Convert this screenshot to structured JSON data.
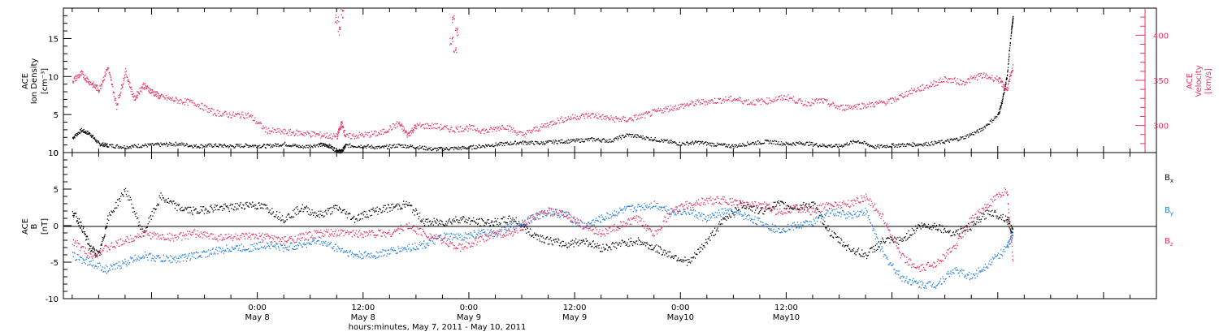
{
  "chart_data": [
    {
      "type": "scatter",
      "panel": "top",
      "left_axis_label": [
        "ACE",
        "Ion Density",
        "[cm⁻³]"
      ],
      "right_axis_label": [
        "ACE",
        "Velocity",
        "[km/s]"
      ],
      "ylim_left": [
        0,
        19
      ],
      "yticks_left": [
        "0",
        "5",
        "10",
        "15"
      ],
      "ylim_right": [
        270,
        430
      ],
      "yticks_right": [
        "300",
        "350",
        "400"
      ],
      "colors": {
        "density": "#000000",
        "velocity": "#e8325f"
      },
      "series": [
        {
          "axis": "left",
          "x": [
            -21,
            -20,
            -19,
            -18,
            -17,
            -15,
            -13,
            -11,
            -9,
            -7,
            -5,
            -3,
            -1,
            1,
            3,
            5,
            7,
            8,
            9,
            9.5,
            10,
            12,
            14,
            16,
            18,
            20,
            22,
            24,
            26,
            28,
            30,
            32,
            34,
            36,
            38,
            40,
            42,
            44,
            46,
            48,
            50,
            52,
            54,
            56,
            58,
            60,
            62,
            64,
            66,
            68,
            70,
            72,
            74,
            76,
            78,
            80,
            82,
            84,
            84.5,
            85,
            85.5,
            85.7
          ],
          "values": [
            2,
            3,
            2.5,
            1.2,
            1,
            0.8,
            1,
            1.1,
            1.2,
            0.9,
            1,
            0.9,
            1,
            0.9,
            1.2,
            0.8,
            1.1,
            1,
            0.3,
            0.2,
            1,
            0.9,
            0.7,
            1,
            0.8,
            0.5,
            0.6,
            0.7,
            1,
            1.2,
            1.4,
            1.3,
            1.5,
            1.6,
            1.8,
            1.6,
            2.4,
            2,
            1.6,
            1.2,
            1.4,
            1.1,
            0.9,
            1.3,
            1.5,
            1.2,
            1.3,
            1,
            0.9,
            1.6,
            0.8,
            1,
            1.1,
            1.2,
            1.5,
            2,
            3,
            5,
            7,
            10,
            16,
            18
          ]
        },
        {
          "axis": "right",
          "x": [
            -21,
            -20,
            -19,
            -18,
            -17,
            -16,
            -15,
            -14,
            -13,
            -12,
            -11,
            -9,
            -7,
            -5,
            -3,
            -1,
            1,
            3,
            5,
            7,
            9,
            9.5,
            10,
            12,
            14,
            16,
            17,
            18,
            20,
            22,
            24,
            26,
            28,
            30,
            32,
            34,
            36,
            38,
            40,
            42,
            44,
            46,
            48,
            50,
            52,
            54,
            56,
            58,
            60,
            62,
            64,
            66,
            68,
            70,
            72,
            74,
            76,
            78,
            80,
            82,
            84,
            85,
            85.7
          ],
          "values": [
            350,
            358,
            348,
            340,
            365,
            322,
            360,
            330,
            345,
            338,
            332,
            328,
            325,
            315,
            312,
            312,
            295,
            293,
            292,
            290,
            288,
            303,
            288,
            290,
            292,
            303,
            290,
            300,
            300,
            296,
            298,
            294,
            300,
            290,
            298,
            306,
            310,
            312,
            308,
            307,
            312,
            318,
            322,
            326,
            328,
            330,
            326,
            328,
            332,
            325,
            328,
            320,
            322,
            324,
            328,
            338,
            344,
            352,
            348,
            356,
            352,
            340,
            366
          ]
        },
        {
          "axis": "right",
          "x": [
            9,
            9.3,
            9.6,
            22,
            22.2,
            22.4,
            22.6
          ],
          "values": [
            418,
            405,
            424,
            395,
            418,
            385,
            405
          ]
        }
      ]
    },
    {
      "type": "scatter",
      "panel": "bottom",
      "left_axis_label": [
        "ACE",
        "B",
        "[nT]"
      ],
      "ylim": [
        -10,
        10
      ],
      "yticks": [
        "-10",
        "-5",
        "0",
        "5",
        "10"
      ],
      "zero_line": true,
      "xlim": [
        -22,
        102
      ],
      "xticks": [
        {
          "hour": 0,
          "time": "0:00",
          "date": "May 8"
        },
        {
          "hour": 12,
          "time": "12:00",
          "date": "May 8"
        },
        {
          "hour": 24,
          "time": "0:00",
          "date": "May 9"
        },
        {
          "hour": 36,
          "time": "12:00",
          "date": "May 9"
        },
        {
          "hour": 48,
          "time": "0:00",
          "date": "May10"
        },
        {
          "hour": 60,
          "time": "12:00",
          "date": "May10"
        }
      ],
      "xlabel": "hours:minutes, May  7, 2011 - May 10, 2011",
      "series": [
        {
          "name": "Bx",
          "color": "#000000",
          "x": [
            -21,
            -20,
            -19,
            -18,
            -17,
            -15,
            -13,
            -11,
            -9,
            -7,
            -5,
            -3,
            -1,
            1,
            3,
            5,
            7,
            9,
            11,
            13,
            15,
            17,
            19,
            21,
            23,
            25,
            27,
            29,
            31,
            33,
            35,
            37,
            39,
            41,
            43,
            45,
            47,
            49,
            51,
            53,
            55,
            57,
            59,
            61,
            63,
            65,
            67,
            69,
            71,
            73,
            75,
            77,
            79,
            81,
            83,
            85,
            85.7
          ],
          "values": [
            2,
            0,
            -3,
            -4,
            1,
            5,
            -1,
            4,
            2.5,
            2,
            2.5,
            2.5,
            3,
            2.5,
            1,
            2.5,
            1.5,
            2.5,
            1,
            2,
            2.5,
            3,
            0.5,
            0.5,
            1,
            0.5,
            0.5,
            1,
            -1,
            -2,
            -2.5,
            -2,
            -3,
            -2.5,
            -2,
            -3,
            -4,
            -5,
            -2,
            1,
            3,
            2,
            3,
            2.5,
            3,
            -1,
            -3,
            -4,
            -2,
            -2,
            0,
            0,
            -1,
            0,
            2,
            1,
            -1
          ]
        },
        {
          "name": "By",
          "color": "#1e7ee0",
          "x": [
            -21,
            -19,
            -17,
            -15,
            -13,
            -11,
            -9,
            -7,
            -5,
            -3,
            -1,
            1,
            3,
            5,
            7,
            9,
            11,
            13,
            15,
            17,
            19,
            21,
            23,
            25,
            27,
            29,
            31,
            33,
            35,
            37,
            39,
            41,
            43,
            45,
            47,
            49,
            51,
            53,
            55,
            57,
            59,
            61,
            63,
            65,
            67,
            69,
            71,
            73,
            75,
            77,
            79,
            81,
            83,
            85,
            85.7
          ],
          "values": [
            -4,
            -5,
            -6,
            -5,
            -4,
            -4.5,
            -4.5,
            -4,
            -3.5,
            -3,
            -3,
            -2.5,
            -3,
            -2.5,
            -2,
            -3,
            -4,
            -4,
            -3.5,
            -3,
            -2.5,
            -1.5,
            -1.5,
            -1,
            -1,
            0,
            1,
            2,
            1.5,
            0,
            1,
            2,
            2.5,
            3,
            2,
            2,
            1,
            2,
            1.5,
            0.5,
            -0.5,
            0,
            0.5,
            2,
            1.5,
            2,
            -4,
            -7,
            -8,
            -8,
            -6,
            -7,
            -5,
            -3,
            -1
          ]
        },
        {
          "name": "Bz",
          "color": "#e8325f",
          "x": [
            -21,
            -19,
            -17,
            -15,
            -13,
            -11,
            -9,
            -7,
            -5,
            -3,
            -1,
            1,
            3,
            5,
            7,
            9,
            11,
            13,
            15,
            17,
            19,
            21,
            23,
            25,
            27,
            29,
            31,
            33,
            35,
            37,
            39,
            41,
            43,
            45,
            47,
            49,
            51,
            53,
            55,
            57,
            59,
            61,
            63,
            65,
            67,
            69,
            71,
            73,
            75,
            77,
            79,
            81,
            83,
            85,
            85.7
          ],
          "values": [
            -2,
            -4,
            -3,
            -2,
            -1,
            -1.5,
            -1.5,
            -1,
            -1.5,
            -1.5,
            -1.5,
            -1.5,
            -2,
            -1.5,
            -1,
            -1,
            -1,
            -1,
            -1,
            0,
            -1,
            -2,
            -3,
            -2,
            -1,
            -1,
            1,
            2,
            1.5,
            0,
            -1,
            0,
            1,
            -1,
            2,
            3,
            3.5,
            3.5,
            3,
            3,
            2,
            2.5,
            2,
            3,
            3,
            4,
            1,
            -4,
            -6,
            -5,
            -3,
            1,
            3,
            5,
            -5
          ]
        }
      ],
      "legend": [
        "Bx",
        "By",
        "Bz"
      ]
    }
  ]
}
